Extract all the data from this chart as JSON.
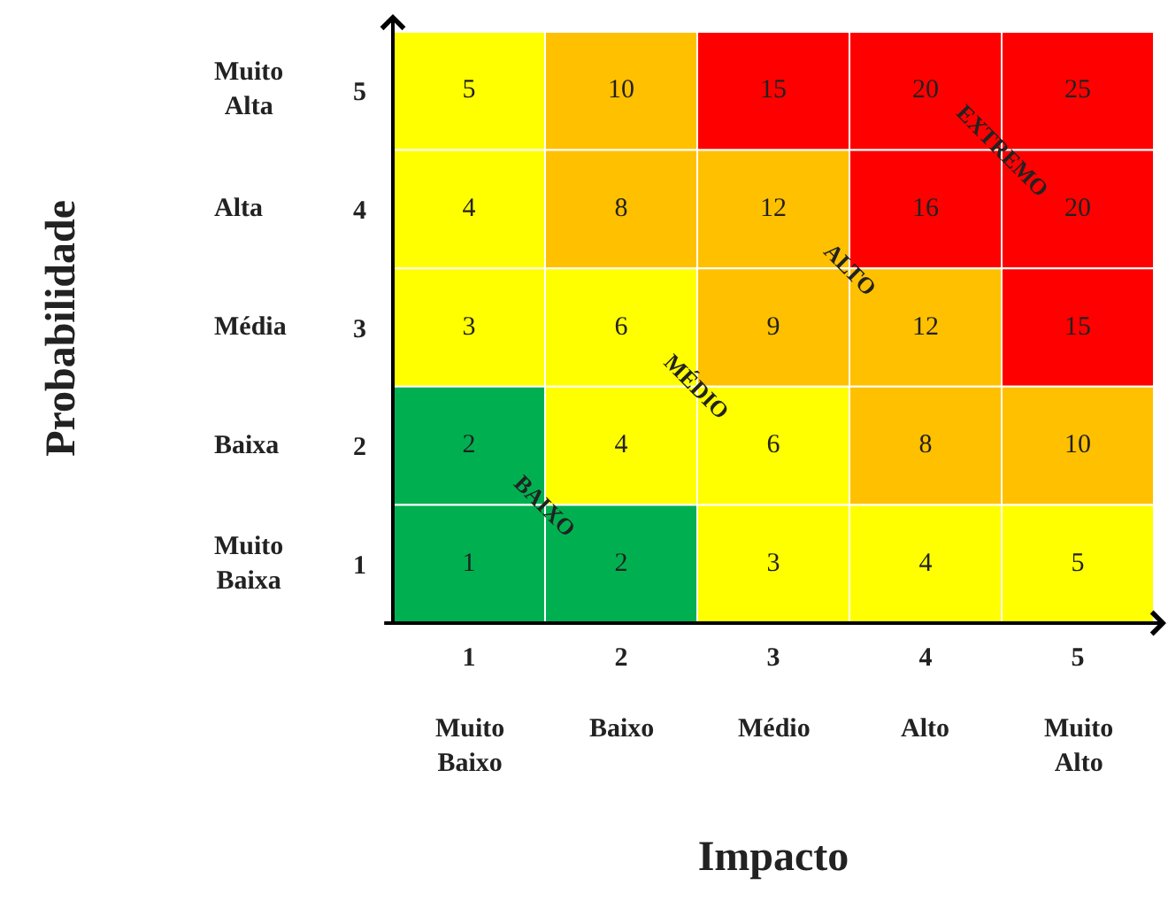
{
  "chart_data": {
    "type": "heatmap",
    "xlabel": "Impacto",
    "categories": [
      "1",
      "2",
      "3",
      "4",
      "5"
    ],
    "y_categories": [
      "5",
      "4",
      "3",
      "2",
      "1"
    ],
    "y2_categories": [
      "Muito Alta",
      "Alta",
      "Média",
      "Baixa",
      "Muito Baixa"
    ],
    "cells": [
      [
        5,
        10,
        15,
        20,
        25
      ],
      [
        4,
        8,
        12,
        16,
        20
      ],
      [
        3,
        6,
        9,
        12,
        15
      ],
      [
        2,
        4,
        6,
        8,
        10
      ],
      [
        1,
        2,
        3,
        4,
        5
      ]
    ],
    "data_labels": true,
    "colors": [
      [
        "#ffff00",
        "#ffc000",
        "#ff0000",
        "#ff0000",
        "#ff0000"
      ],
      [
        "#ffff00",
        "#ffc000",
        "#ffc000",
        "#ff0000",
        "#ff0000"
      ],
      [
        "#ffff00",
        "#ffff00",
        "#ffc000",
        "#ffc000",
        "#ff0000"
      ],
      [
        "#00b050",
        "#ffff00",
        "#ffff00",
        "#ffc000",
        "#ffc000"
      ],
      [
        "#00b050",
        "#00b050",
        "#ffff00",
        "#ffff00",
        "#ffff00"
      ]
    ],
    "annotations": [
      "Muito Baixo",
      "Baixo",
      "Médio",
      "Alto",
      "Muito Alto",
      "BAIXO",
      "MÉDIO",
      "ALTO",
      "EXTREMO",
      "Probabilidade"
    ]
  }
}
